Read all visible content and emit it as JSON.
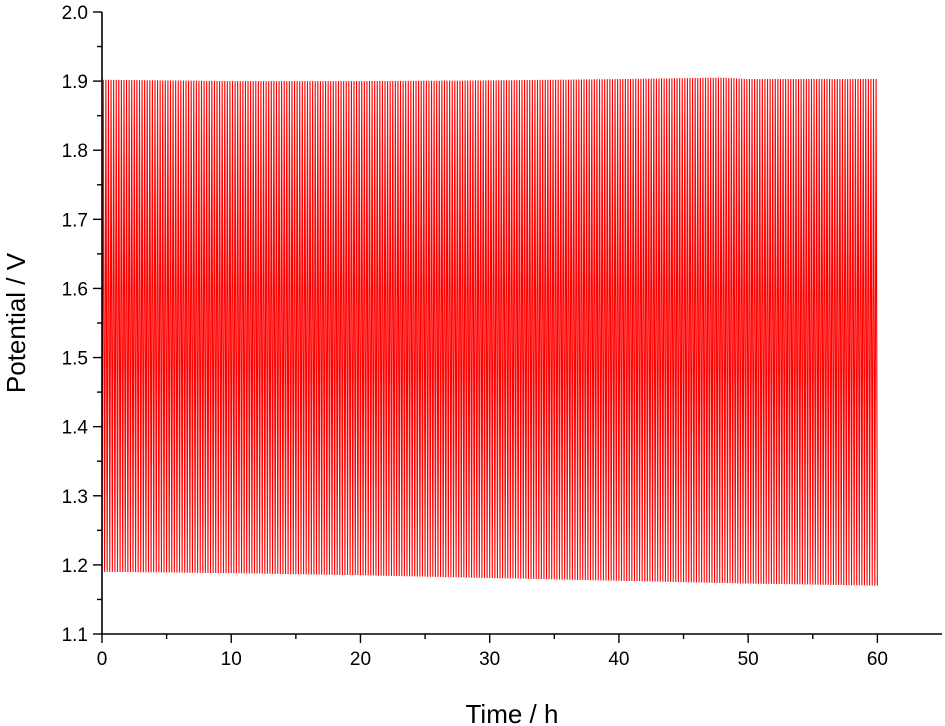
{
  "chart_data": {
    "type": "line",
    "title": "",
    "xlabel": "Time / h",
    "ylabel": "Potential / V",
    "xlim": [
      0,
      65
    ],
    "ylim": [
      1.1,
      2.0
    ],
    "xticks": [
      0,
      10,
      20,
      30,
      40,
      50,
      60
    ],
    "xtick_labels": [
      "0",
      "10",
      "20",
      "30",
      "40",
      "50",
      "60"
    ],
    "yticks": [
      1.1,
      1.2,
      1.3,
      1.4,
      1.5,
      1.6,
      1.7,
      1.8,
      1.9,
      2.0
    ],
    "ytick_labels": [
      "1.1",
      "1.2",
      "1.3",
      "1.4",
      "1.5",
      "1.6",
      "1.7",
      "1.8",
      "1.9",
      "2.0"
    ],
    "grid": false,
    "legend": "none",
    "series": [
      {
        "color": "#ff0000",
        "description_of_shape": "charge-discharge cycling oscillating between upper and lower envelopes",
        "cycles": 300,
        "time_range": [
          0,
          60
        ],
        "upper_envelope": {
          "x": [
            0,
            10,
            20,
            30,
            40,
            48,
            50,
            60
          ],
          "y": [
            1.902,
            1.9,
            1.9,
            1.901,
            1.903,
            1.905,
            1.903,
            1.903
          ]
        },
        "lower_envelope": {
          "x": [
            0,
            10,
            20,
            30,
            40,
            50,
            60
          ],
          "y": [
            1.19,
            1.188,
            1.185,
            1.181,
            1.177,
            1.173,
            1.17
          ]
        }
      }
    ]
  }
}
